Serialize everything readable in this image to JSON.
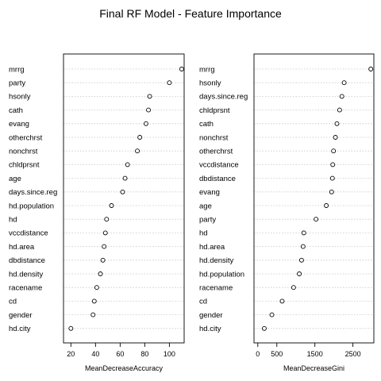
{
  "title": "Final RF Model - Feature Importance",
  "chart_data": [
    {
      "type": "scatter",
      "xlabel": "MeanDecreaseAccuracy",
      "xlim": [
        14,
        112
      ],
      "xticks": [
        20,
        40,
        60,
        80,
        100
      ],
      "grid": "horizontal dotted",
      "features": [
        "mrrg",
        "party",
        "hsonly",
        "cath",
        "evang",
        "otherchrst",
        "nonchrst",
        "chldprsnt",
        "age",
        "days.since.reg",
        "hd.population",
        "hd",
        "vccdistance",
        "hd.area",
        "dbdistance",
        "hd.density",
        "racename",
        "cd",
        "gender",
        "hd.city"
      ],
      "values": [
        110,
        100,
        84,
        83,
        81,
        76,
        74,
        66,
        64,
        62,
        53,
        49,
        48,
        47,
        46,
        44,
        41,
        39,
        38,
        20
      ]
    },
    {
      "type": "scatter",
      "xlabel": "MeanDecreaseGini",
      "xlim": [
        -100,
        3050
      ],
      "xticks": [
        0,
        500,
        1500,
        2500
      ],
      "grid": "horizontal dotted",
      "features": [
        "mrrg",
        "hsonly",
        "days.since.reg",
        "chldprsnt",
        "cath",
        "nonchrst",
        "otherchrst",
        "vccdistance",
        "dbdistance",
        "evang",
        "age",
        "party",
        "hd",
        "hd.area",
        "hd.density",
        "hd.population",
        "racename",
        "cd",
        "gender",
        "hd.city"
      ],
      "values": [
        2970,
        2270,
        2210,
        2150,
        2080,
        2040,
        1990,
        1970,
        1960,
        1940,
        1800,
        1530,
        1210,
        1190,
        1150,
        1090,
        940,
        640,
        370,
        170
      ]
    }
  ]
}
